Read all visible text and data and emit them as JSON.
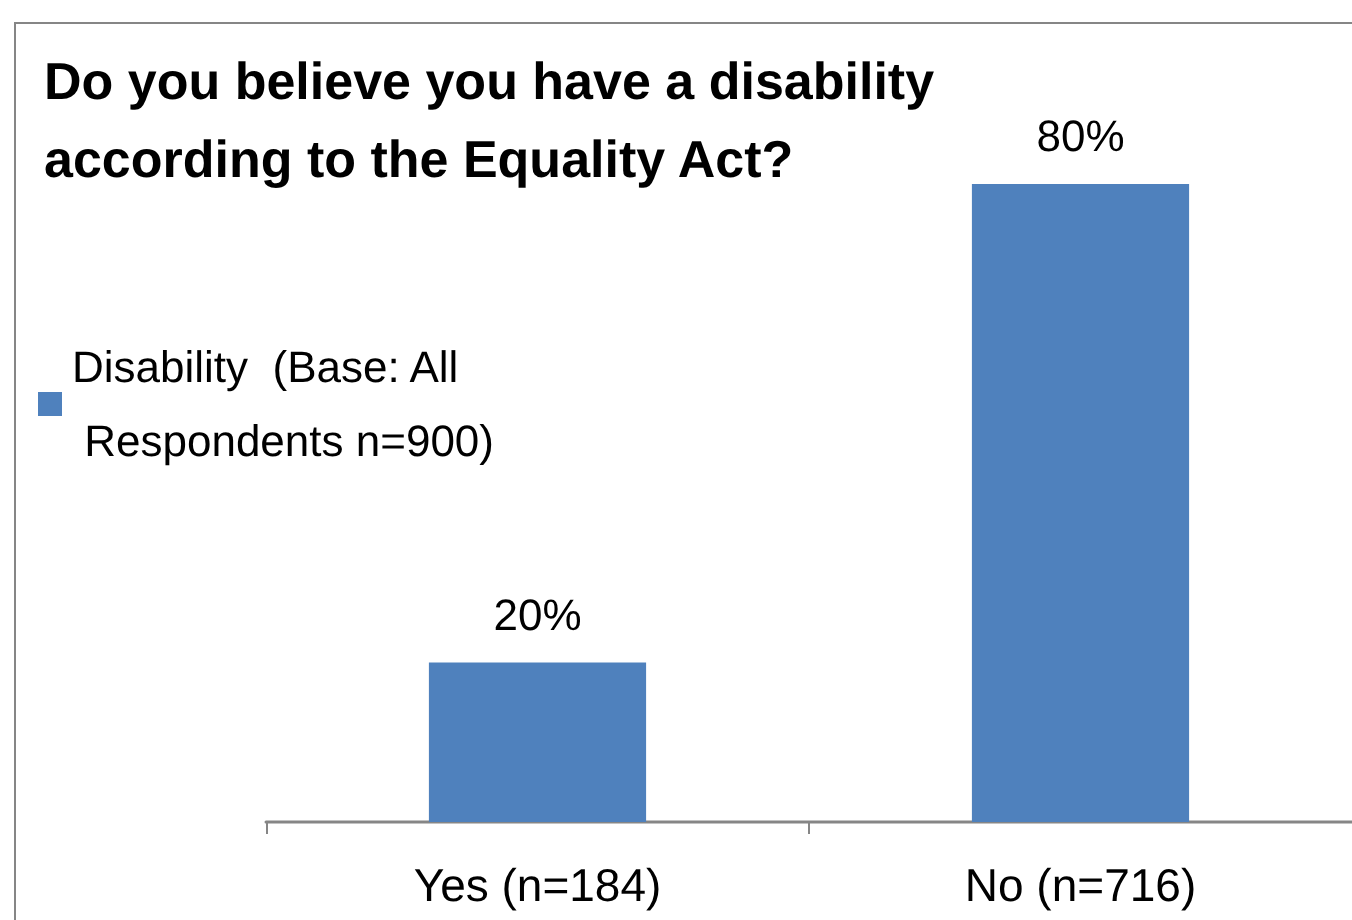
{
  "chart_data": {
    "type": "bar",
    "title": "Do you believe you have a disability according to the Equality Act?",
    "categories": [
      "Yes (n=184)",
      "No (n=716)"
    ],
    "series": [
      {
        "name": "Disability  (Base: All Respondents n=900)",
        "color": "#4f81bd",
        "values": [
          20,
          80
        ],
        "value_labels": [
          "20%",
          "80%"
        ]
      }
    ],
    "legend": "left",
    "grid": false,
    "tick_labels": "x"
  }
}
